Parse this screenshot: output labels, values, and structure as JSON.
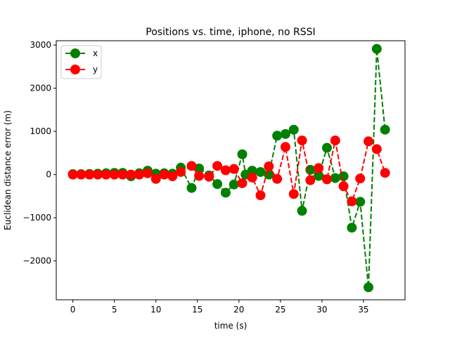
{
  "chart_data": {
    "type": "line",
    "title": "Positions vs. time, iphone, no RSSI",
    "xlabel": "time (s)",
    "ylabel": "Euclidean distance error (m)",
    "xlim": [
      -2,
      40
    ],
    "ylim": [
      -2900,
      3100
    ],
    "xticks": [
      0,
      5,
      10,
      15,
      20,
      25,
      30,
      35
    ],
    "yticks": [
      -2000,
      -1000,
      0,
      1000,
      2000,
      3000
    ],
    "grid": false,
    "legend_position": "top-left",
    "series": [
      {
        "name": "x",
        "color": "#008000",
        "style": "dashed",
        "marker": "circle",
        "points": [
          [
            0,
            10
          ],
          [
            1,
            10
          ],
          [
            2,
            15
          ],
          [
            3,
            20
          ],
          [
            4,
            30
          ],
          [
            5,
            40
          ],
          [
            6,
            40
          ],
          [
            7,
            -40
          ],
          [
            8,
            30
          ],
          [
            9,
            90
          ],
          [
            10,
            20
          ],
          [
            11,
            30
          ],
          [
            12,
            20
          ],
          [
            13,
            160
          ],
          [
            14.3,
            -310
          ],
          [
            15.2,
            140
          ],
          [
            16.4,
            -20
          ],
          [
            17.4,
            -220
          ],
          [
            18.4,
            -420
          ],
          [
            19.4,
            -230
          ],
          [
            20.4,
            470
          ],
          [
            20.8,
            0
          ],
          [
            21.6,
            90
          ],
          [
            22.6,
            60
          ],
          [
            23.6,
            0
          ],
          [
            24.6,
            900
          ],
          [
            25.6,
            940
          ],
          [
            26.6,
            1040
          ],
          [
            27.6,
            -840
          ],
          [
            28.6,
            110
          ],
          [
            29.6,
            -30
          ],
          [
            30.6,
            620
          ],
          [
            31.6,
            -80
          ],
          [
            32.6,
            -40
          ],
          [
            33.6,
            -1230
          ],
          [
            34.6,
            -630
          ],
          [
            35.6,
            -2610
          ],
          [
            36.6,
            2910
          ],
          [
            37.6,
            1040
          ]
        ]
      },
      {
        "name": "y",
        "color": "#ff0000",
        "style": "dashed",
        "marker": "circle",
        "points": [
          [
            0,
            0
          ],
          [
            1,
            0
          ],
          [
            2,
            0
          ],
          [
            3,
            0
          ],
          [
            4,
            0
          ],
          [
            5,
            0
          ],
          [
            6,
            0
          ],
          [
            7,
            0
          ],
          [
            8,
            0
          ],
          [
            9,
            30
          ],
          [
            10,
            -100
          ],
          [
            11,
            0
          ],
          [
            12,
            -40
          ],
          [
            13,
            60
          ],
          [
            14.3,
            200
          ],
          [
            15.2,
            -30
          ],
          [
            16.4,
            -50
          ],
          [
            17.4,
            200
          ],
          [
            18.4,
            100
          ],
          [
            19.4,
            130
          ],
          [
            20.4,
            -200
          ],
          [
            21.6,
            -70
          ],
          [
            22.6,
            -480
          ],
          [
            23.6,
            190
          ],
          [
            24.6,
            -100
          ],
          [
            25.6,
            640
          ],
          [
            26.6,
            -450
          ],
          [
            27.6,
            790
          ],
          [
            28.6,
            -130
          ],
          [
            29.6,
            150
          ],
          [
            30.6,
            -110
          ],
          [
            31.6,
            790
          ],
          [
            32.6,
            -270
          ],
          [
            33.6,
            -620
          ],
          [
            34.6,
            -90
          ],
          [
            35.6,
            770
          ],
          [
            36.6,
            590
          ],
          [
            37.6,
            40
          ]
        ]
      }
    ]
  }
}
